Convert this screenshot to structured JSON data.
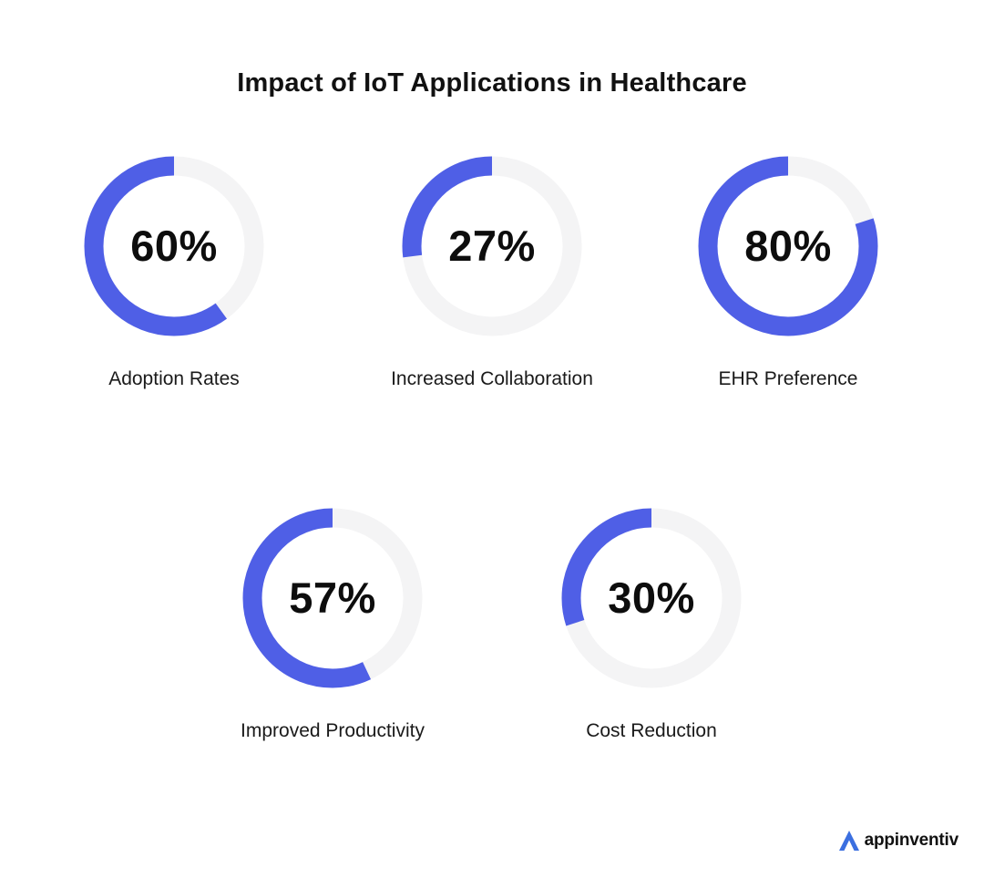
{
  "title": "Impact of IoT Applications in Healthcare",
  "colors": {
    "accent": "#4f5fe6",
    "track": "#f4f4f5",
    "text": "#111111"
  },
  "chart_data": {
    "type": "pie",
    "variant": "donut-gauges",
    "title": "Impact of IoT Applications in Healthcare",
    "items": [
      {
        "label": "Adoption Rates",
        "value": 60,
        "display": "60%"
      },
      {
        "label": "Increased Collaboration",
        "value": 27,
        "display": "27%"
      },
      {
        "label": "EHR Preference",
        "value": 80,
        "display": "80%"
      },
      {
        "label": "Improved Productivity",
        "value": 57,
        "display": "57%"
      },
      {
        "label": "Cost Reduction",
        "value": 30,
        "display": "30%"
      }
    ]
  },
  "brand": {
    "name": "appinventiv",
    "icon": "appinventiv-logo-icon"
  }
}
